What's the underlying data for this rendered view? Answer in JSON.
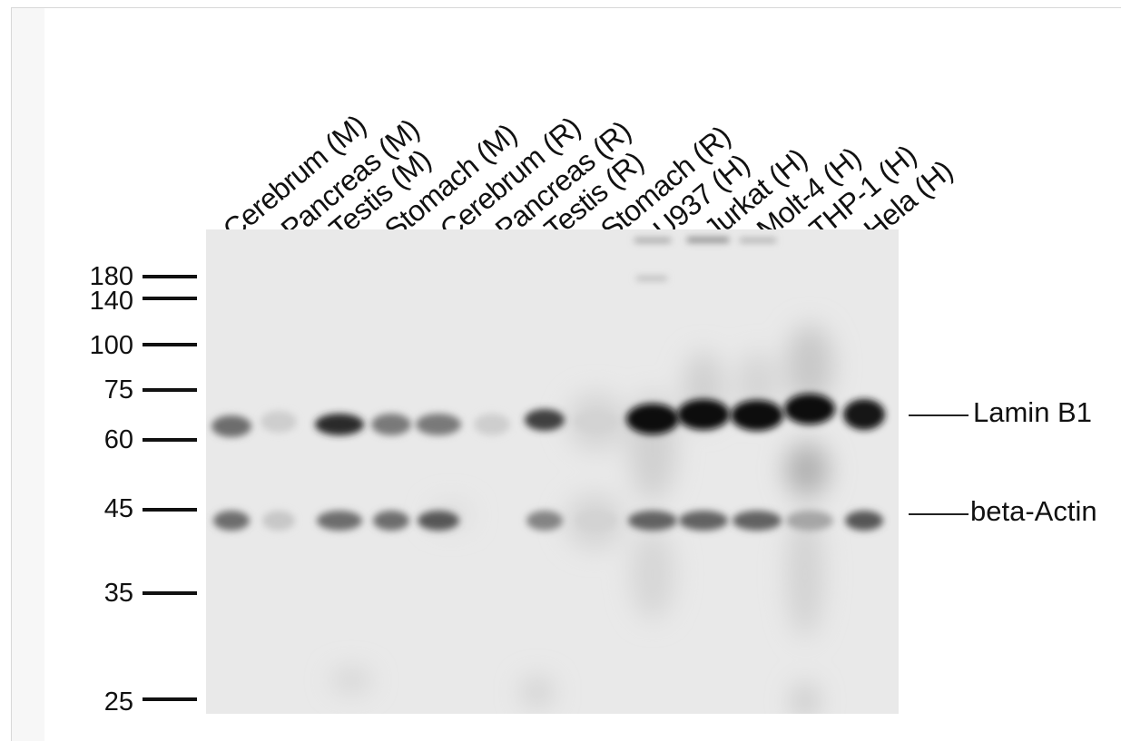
{
  "lanes": [
    {
      "label": "Cerebrum (M)",
      "lamin": 0.55,
      "actin": 0.55
    },
    {
      "label": "Pancreas (M)",
      "lamin": 0.12,
      "actin": 0.15
    },
    {
      "label": "Testis (M)",
      "lamin": 0.85,
      "actin": 0.55
    },
    {
      "label": "Stomach (M)",
      "lamin": 0.5,
      "actin": 0.55
    },
    {
      "label": "Cerebrum (R)",
      "lamin": 0.5,
      "actin": 0.65
    },
    {
      "label": "Pancreas (R)",
      "lamin": 0.12,
      "actin": 0.0
    },
    {
      "label": "Testis (R)",
      "lamin": 0.75,
      "actin": 0.45
    },
    {
      "label": "Stomach (R)",
      "lamin": 0.1,
      "actin": 0.1
    },
    {
      "label": "U937 (H)",
      "lamin": 1.0,
      "actin": 0.6
    },
    {
      "label": "Jurkat (H)",
      "lamin": 1.0,
      "actin": 0.6
    },
    {
      "label": "Molt-4 (H)",
      "lamin": 1.0,
      "actin": 0.6
    },
    {
      "label": "THP-1 (H)",
      "lamin": 1.0,
      "actin": 0.3
    },
    {
      "label": "Hela (H)",
      "lamin": 0.95,
      "actin": 0.65
    }
  ],
  "mw_markers": [
    "180",
    "140",
    "100",
    "75",
    "60",
    "45",
    "35",
    "25"
  ],
  "band_labels": {
    "lamin": "Lamin B1",
    "actin": "beta-Actin"
  },
  "colors": {
    "background": "#f7f7f7",
    "blot": "#e9e9e9",
    "band": "#111111",
    "text": "#111111"
  }
}
